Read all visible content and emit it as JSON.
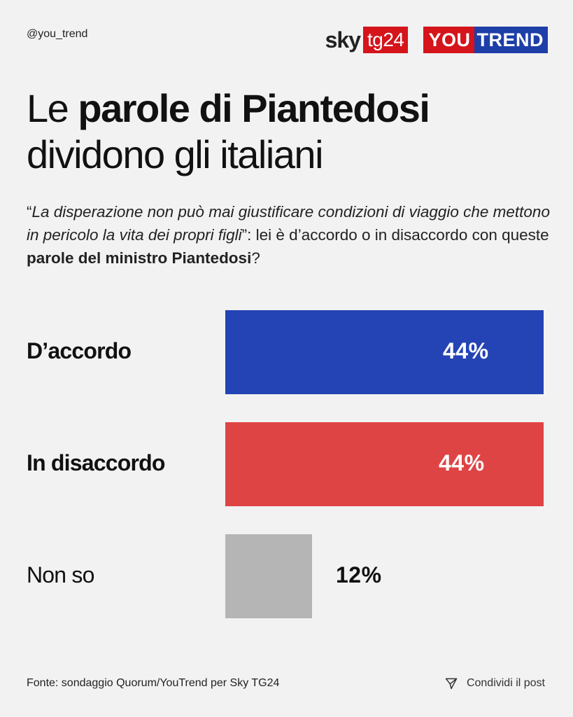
{
  "header": {
    "handle": "@you_trend",
    "logo_sky": "sky",
    "logo_tg": "tg24",
    "logo_you": "YOU",
    "logo_trend": "TREND"
  },
  "title": {
    "line1_normal": "Le ",
    "line1_bold": "parole di Piantedosi",
    "line2": "dividono gli italiani"
  },
  "question": {
    "open_quote": "“",
    "quote": "La disperazione non può mai giustificare condizioni di viaggio che mettono in pericolo la vita  dei propri figli",
    "close_quote": "”",
    "mid": ": lei è d’accordo o in disaccordo con queste ",
    "bold": "parole del ministro Piantedosi",
    "end": "?"
  },
  "colors": {
    "accordo": "#2443b4",
    "disaccordo": "#df4444",
    "nonso": "#b5b5b5",
    "brand_red": "#d5141b",
    "brand_blue": "#1e3ea8"
  },
  "chart_data": {
    "type": "bar",
    "orientation": "horizontal",
    "categories": [
      "D’accordo",
      "In disaccordo",
      "Non so"
    ],
    "values": [
      44,
      44,
      12
    ],
    "value_labels": [
      "44%",
      "44%",
      "12%"
    ],
    "xlim": [
      0,
      44
    ]
  },
  "footer": {
    "source": "Fonte: sondaggio Quorum/YouTrend per Sky TG24",
    "share_label": "Condividi il post",
    "share_icon": "paper-plane-icon"
  }
}
